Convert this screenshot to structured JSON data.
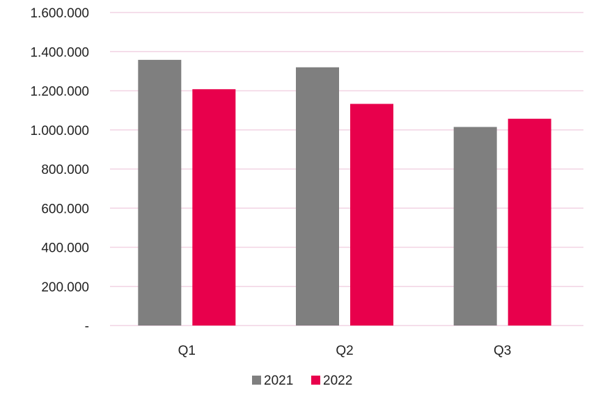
{
  "chart_data": {
    "type": "bar",
    "title": "",
    "xlabel": "",
    "ylabel": "",
    "categories": [
      "Q1",
      "Q2",
      "Q3"
    ],
    "series": [
      {
        "name": "2021",
        "color": "#7f7f7f",
        "values": [
          1358000,
          1320000,
          1015000
        ]
      },
      {
        "name": "2022",
        "color": "#e8004c",
        "values": [
          1208000,
          1133000,
          1057000
        ]
      }
    ],
    "ylim": [
      0,
      1600000
    ],
    "y_ticks": [
      0,
      200000,
      400000,
      600000,
      800000,
      1000000,
      1200000,
      1400000,
      1600000
    ],
    "y_tick_labels": [
      "-",
      "200.000",
      "400.000",
      "600.000",
      "800.000",
      "1.000.000",
      "1.200.000",
      "1.400.000",
      "1.600.000"
    ],
    "grid": true,
    "grid_color": "#f2d3e3",
    "legend_position": "bottom-center"
  }
}
